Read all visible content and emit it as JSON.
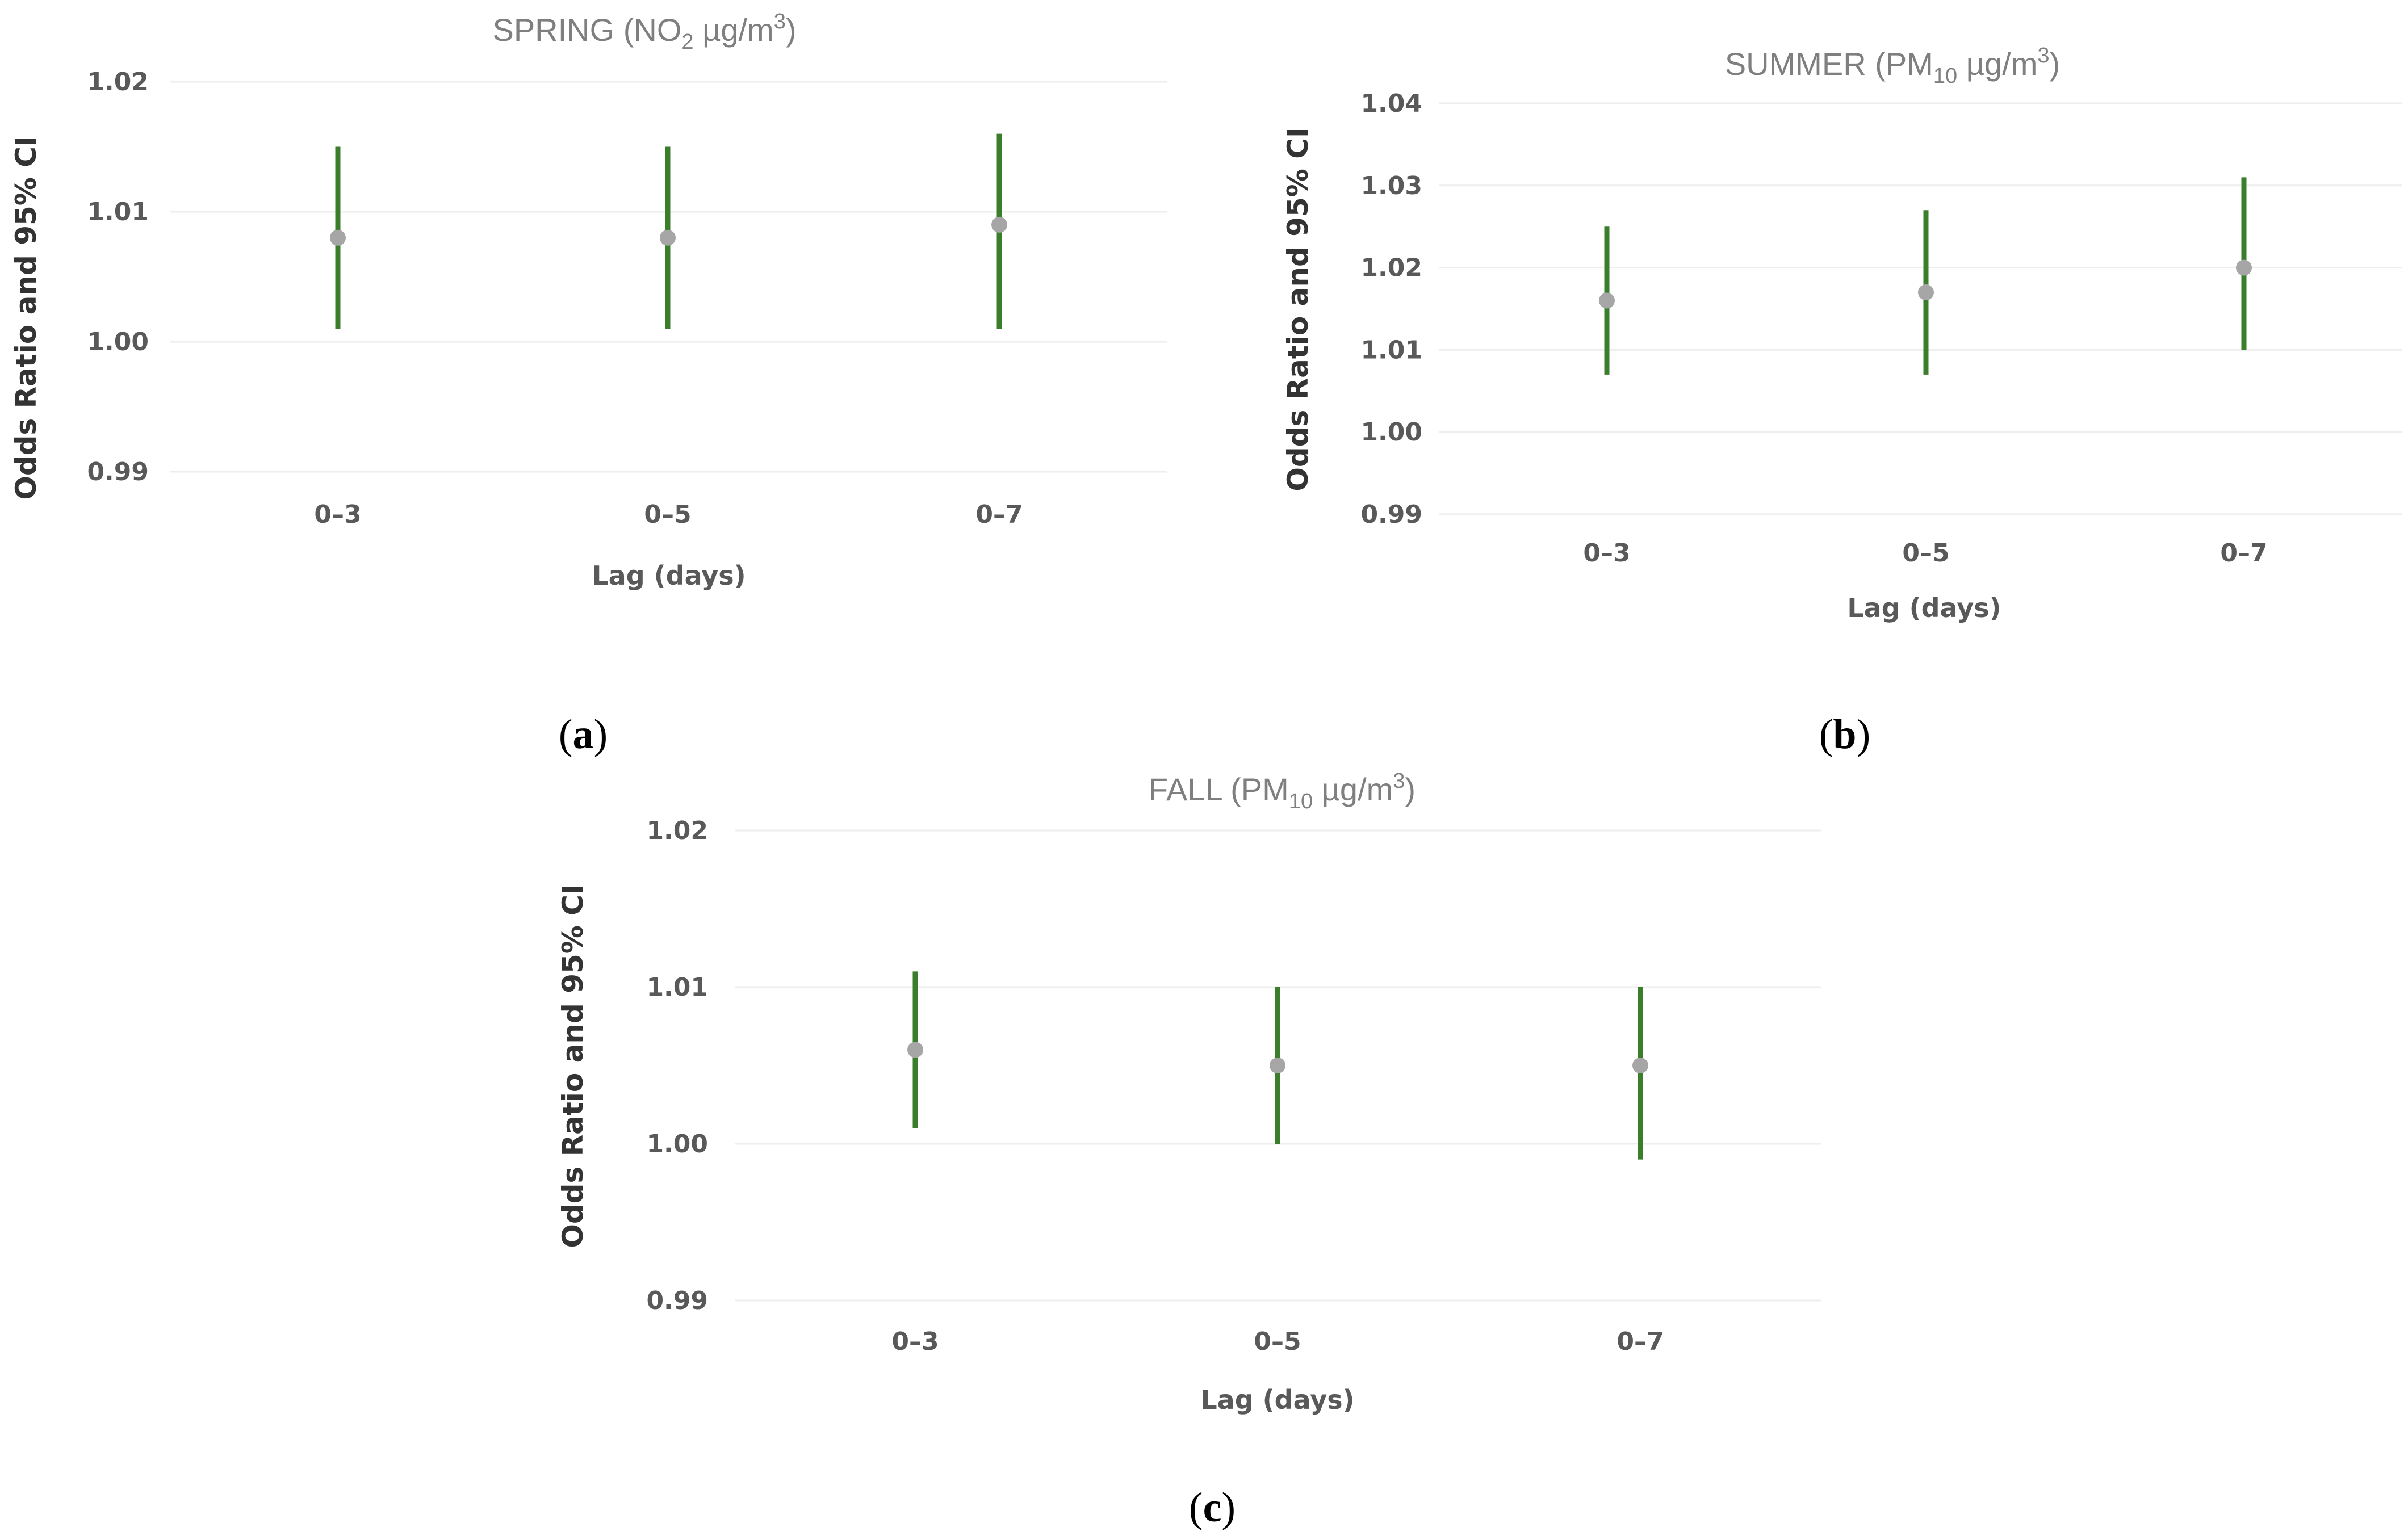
{
  "colors": {
    "ci_line": "#3a7d2b",
    "point": "#a6a6a6",
    "gridline": "#eeeeee"
  },
  "chart_data": [
    {
      "type": "errorbar",
      "panel": "a",
      "title": {
        "prefix": "SPRING (NO",
        "sub": "2",
        "mid": " µg/m",
        "sup": "3",
        "suffix": ")"
      },
      "xlabel": "Lag (days)",
      "ylabel": "Odds Ratio and 95% CI",
      "categories": [
        "0–3",
        "0–5",
        "0–7"
      ],
      "estimates": [
        1.008,
        1.008,
        1.009
      ],
      "lower": [
        1.001,
        1.001,
        1.001
      ],
      "upper": [
        1.015,
        1.015,
        1.016
      ],
      "ylim": [
        0.99,
        1.02
      ],
      "yticks": [
        "0.99",
        "1.00",
        "1.01",
        "1.02"
      ],
      "grid": true
    },
    {
      "type": "errorbar",
      "panel": "b",
      "title": {
        "prefix": "SUMMER (PM",
        "sub": "10",
        "mid": " µg/m",
        "sup": "3",
        "suffix": ")"
      },
      "xlabel": "Lag (days)",
      "ylabel": "Odds Ratio and 95% CI",
      "categories": [
        "0–3",
        "0–5",
        "0–7"
      ],
      "estimates": [
        1.016,
        1.017,
        1.02
      ],
      "lower": [
        1.007,
        1.007,
        1.01
      ],
      "upper": [
        1.025,
        1.027,
        1.031
      ],
      "ylim": [
        0.99,
        1.04
      ],
      "yticks": [
        "0.99",
        "1.00",
        "1.01",
        "1.02",
        "1.03",
        "1.04"
      ],
      "grid": true
    },
    {
      "type": "errorbar",
      "panel": "c",
      "title": {
        "prefix": "FALL (PM",
        "sub": "10",
        "mid": " µg/m",
        "sup": "3",
        "suffix": ")"
      },
      "xlabel": "Lag (days)",
      "ylabel": "Odds Ratio and 95% CI",
      "categories": [
        "0–3",
        "0–5",
        "0–7"
      ],
      "estimates": [
        1.006,
        1.005,
        1.005
      ],
      "lower": [
        1.001,
        1.0,
        0.999
      ],
      "upper": [
        1.011,
        1.01,
        1.01
      ],
      "ylim": [
        0.99,
        1.02
      ],
      "yticks": [
        "0.99",
        "1.00",
        "1.01",
        "1.02"
      ],
      "grid": true
    }
  ],
  "panel_labels": [
    {
      "open": "(",
      "letter": "a",
      "close": ")"
    },
    {
      "open": "(",
      "letter": "b",
      "close": ")"
    },
    {
      "open": "(",
      "letter": "c",
      "close": ")"
    }
  ]
}
